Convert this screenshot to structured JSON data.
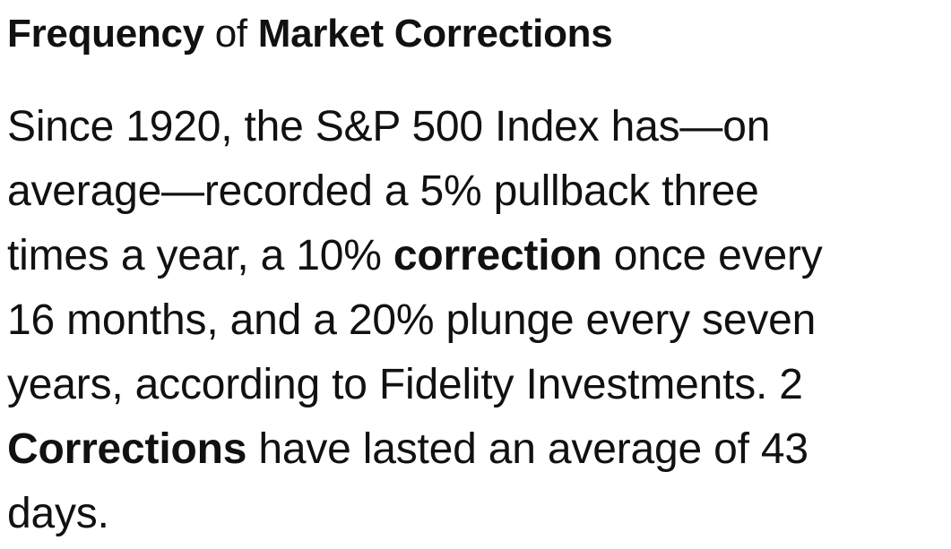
{
  "heading": {
    "part1": "Frequency",
    "part2": " of ",
    "part3": "Market Corrections"
  },
  "paragraph": {
    "line1": "Since 1920, the S&P 500 Index has—on",
    "line2": "average—recorded a 5% pullback three",
    "line3_a": "times a year, a 10% ",
    "line3_b": "correction",
    "line3_c": " once every",
    "line4": "16 months, and a 20% plunge every seven",
    "line5": "years, according to Fidelity Investments. 2",
    "line6_a": "Corrections",
    "line6_b": " have lasted an average of 43",
    "line7": "days."
  }
}
